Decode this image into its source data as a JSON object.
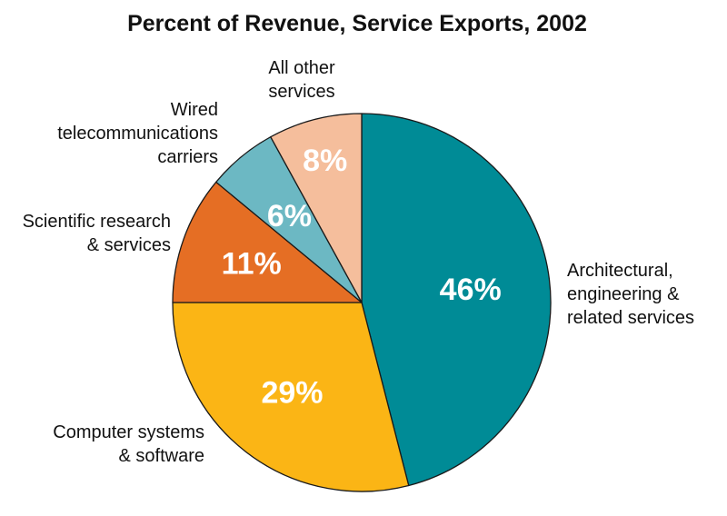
{
  "chart_data": {
    "type": "pie",
    "title": "Percent of Revenue, Service Exports, 2002",
    "start": "12 o'clock",
    "direction": "clockwise",
    "slices": [
      {
        "name": "Architectural, engineering & related services",
        "label_lines": [
          "Architectural,",
          "engineering &",
          "related services"
        ],
        "value": 46,
        "value_label": "46%",
        "color": "#008b96"
      },
      {
        "name": "Computer systems & software",
        "label_lines": [
          "Computer systems",
          "& software"
        ],
        "value": 29,
        "value_label": "29%",
        "color": "#fbb515"
      },
      {
        "name": "Scientific research & services",
        "label_lines": [
          "Scientific research",
          "& services"
        ],
        "value": 11,
        "value_label": "11%",
        "color": "#e56e24"
      },
      {
        "name": "Wired telecommunications carriers",
        "label_lines": [
          "Wired",
          "telecommunications",
          "carriers"
        ],
        "value": 6,
        "value_label": "6%",
        "color": "#6cb8c3"
      },
      {
        "name": "All other services",
        "label_lines": [
          "All other",
          "services"
        ],
        "value": 8,
        "value_label": "8%",
        "color": "#f5be9c"
      }
    ]
  }
}
